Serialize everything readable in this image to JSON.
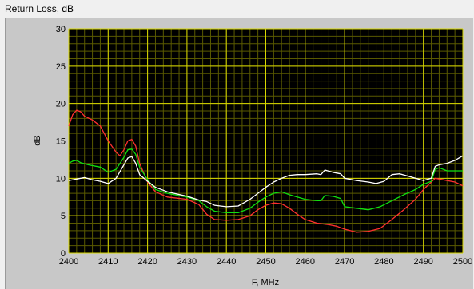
{
  "window": {
    "title": "Return Loss, dB"
  },
  "colors": {
    "plot_background": "#000000",
    "major_grid": "#d8d800",
    "minor_grid": "#5a5a00",
    "panel_background": "#c8c8c8"
  },
  "chart_data": {
    "type": "line",
    "title": "Return Loss, dB",
    "xlabel": "F, MHz",
    "ylabel": "dB",
    "xlim": [
      2400,
      2500
    ],
    "ylim": [
      0,
      30
    ],
    "x_ticks": [
      2400,
      2410,
      2420,
      2430,
      2440,
      2450,
      2460,
      2470,
      2480,
      2490,
      2500
    ],
    "y_ticks": [
      0,
      5,
      10,
      15,
      20,
      25,
      30
    ],
    "grid": true,
    "legend": "none",
    "series": [
      {
        "color": "#ff3030",
        "points": [
          [
            2400,
            17
          ],
          [
            2401,
            18.5
          ],
          [
            2402,
            19.1
          ],
          [
            2403,
            18.9
          ],
          [
            2404,
            18.3
          ],
          [
            2406,
            17.8
          ],
          [
            2408,
            17
          ],
          [
            2410,
            15
          ],
          [
            2412,
            13.5
          ],
          [
            2413,
            13
          ],
          [
            2414,
            13.8
          ],
          [
            2415,
            15
          ],
          [
            2416,
            15.2
          ],
          [
            2417,
            14.3
          ],
          [
            2418,
            12
          ],
          [
            2420,
            9.5
          ],
          [
            2422,
            8.2
          ],
          [
            2425,
            7.5
          ],
          [
            2430,
            7.2
          ],
          [
            2433,
            6.5
          ],
          [
            2435,
            5.2
          ],
          [
            2437,
            4.5
          ],
          [
            2440,
            4.4
          ],
          [
            2443,
            4.5
          ],
          [
            2446,
            5
          ],
          [
            2448,
            5.8
          ],
          [
            2450,
            6.4
          ],
          [
            2452,
            6.7
          ],
          [
            2454,
            6.6
          ],
          [
            2456,
            6
          ],
          [
            2458,
            5.2
          ],
          [
            2460,
            4.5
          ],
          [
            2463,
            4
          ],
          [
            2466,
            3.8
          ],
          [
            2468,
            3.6
          ],
          [
            2470,
            3.2
          ],
          [
            2473,
            2.8
          ],
          [
            2476,
            2.9
          ],
          [
            2479,
            3.3
          ],
          [
            2482,
            4.5
          ],
          [
            2485,
            5.8
          ],
          [
            2488,
            7.2
          ],
          [
            2490,
            8.5
          ],
          [
            2492,
            9.5
          ],
          [
            2493,
            10
          ],
          [
            2495,
            9.8
          ],
          [
            2498,
            9.5
          ],
          [
            2500,
            9
          ]
        ]
      },
      {
        "color": "#10e010",
        "points": [
          [
            2400,
            12
          ],
          [
            2401,
            12.3
          ],
          [
            2402,
            12.4
          ],
          [
            2403,
            12.1
          ],
          [
            2405,
            11.8
          ],
          [
            2408,
            11.5
          ],
          [
            2410,
            10.8
          ],
          [
            2412,
            11.2
          ],
          [
            2414,
            12.8
          ],
          [
            2415,
            13.8
          ],
          [
            2416,
            13.9
          ],
          [
            2417,
            13.2
          ],
          [
            2418,
            11.5
          ],
          [
            2420,
            9.8
          ],
          [
            2422,
            8.5
          ],
          [
            2425,
            8
          ],
          [
            2430,
            7.5
          ],
          [
            2433,
            7
          ],
          [
            2435,
            6.2
          ],
          [
            2437,
            5.6
          ],
          [
            2440,
            5.4
          ],
          [
            2443,
            5.4
          ],
          [
            2446,
            6
          ],
          [
            2448,
            6.8
          ],
          [
            2450,
            7.5
          ],
          [
            2452,
            8
          ],
          [
            2454,
            8.2
          ],
          [
            2456,
            7.8
          ],
          [
            2458,
            7.5
          ],
          [
            2460,
            7.2
          ],
          [
            2463,
            7
          ],
          [
            2464,
            7
          ],
          [
            2465,
            7.7
          ],
          [
            2467,
            7.6
          ],
          [
            2469,
            7.3
          ],
          [
            2470,
            6.2
          ],
          [
            2473,
            6
          ],
          [
            2476,
            5.8
          ],
          [
            2479,
            6.2
          ],
          [
            2482,
            7
          ],
          [
            2485,
            7.8
          ],
          [
            2488,
            8.5
          ],
          [
            2490,
            9.2
          ],
          [
            2492,
            9.6
          ],
          [
            2493,
            11.2
          ],
          [
            2494,
            11.4
          ],
          [
            2496,
            11
          ],
          [
            2498,
            11
          ],
          [
            2500,
            11
          ]
        ]
      },
      {
        "color": "#ffffff",
        "points": [
          [
            2400,
            9.7
          ],
          [
            2402,
            9.9
          ],
          [
            2404,
            10.1
          ],
          [
            2406,
            9.8
          ],
          [
            2408,
            9.6
          ],
          [
            2410,
            9.3
          ],
          [
            2412,
            10
          ],
          [
            2414,
            11.8
          ],
          [
            2415,
            12.7
          ],
          [
            2416,
            12.9
          ],
          [
            2417,
            12
          ],
          [
            2418,
            10.5
          ],
          [
            2420,
            9.6
          ],
          [
            2422,
            8.8
          ],
          [
            2425,
            8.2
          ],
          [
            2430,
            7.6
          ],
          [
            2433,
            7.1
          ],
          [
            2435,
            6.9
          ],
          [
            2437,
            6.4
          ],
          [
            2440,
            6.2
          ],
          [
            2443,
            6.3
          ],
          [
            2446,
            7.2
          ],
          [
            2448,
            8
          ],
          [
            2450,
            8.8
          ],
          [
            2452,
            9.5
          ],
          [
            2454,
            10
          ],
          [
            2456,
            10.4
          ],
          [
            2458,
            10.5
          ],
          [
            2460,
            10.5
          ],
          [
            2463,
            10.6
          ],
          [
            2464,
            10.5
          ],
          [
            2465,
            11.1
          ],
          [
            2467,
            10.8
          ],
          [
            2469,
            10.6
          ],
          [
            2470,
            10
          ],
          [
            2473,
            9.7
          ],
          [
            2476,
            9.5
          ],
          [
            2478,
            9.3
          ],
          [
            2480,
            9.6
          ],
          [
            2482,
            10.5
          ],
          [
            2484,
            10.6
          ],
          [
            2486,
            10.3
          ],
          [
            2488,
            10
          ],
          [
            2490,
            9.7
          ],
          [
            2492,
            10
          ],
          [
            2493,
            11.6
          ],
          [
            2494,
            11.8
          ],
          [
            2496,
            12
          ],
          [
            2498,
            12.4
          ],
          [
            2500,
            13
          ]
        ]
      }
    ]
  }
}
